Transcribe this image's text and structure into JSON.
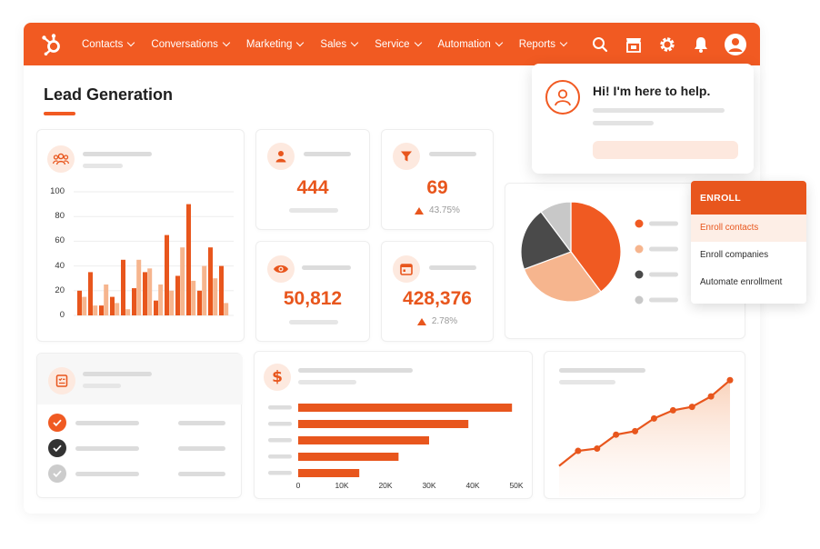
{
  "nav": {
    "items": [
      {
        "label": "Contacts"
      },
      {
        "label": "Conversations"
      },
      {
        "label": "Marketing"
      },
      {
        "label": "Sales"
      },
      {
        "label": "Service"
      },
      {
        "label": "Automation"
      },
      {
        "label": "Reports"
      }
    ],
    "icons": [
      "search-icon",
      "marketplace-icon",
      "gear-icon",
      "bell-icon",
      "avatar-icon"
    ],
    "color": "#f15a22"
  },
  "page": {
    "title": "Lead Generation"
  },
  "stats": [
    {
      "icon": "person-icon",
      "value": "444"
    },
    {
      "icon": "funnel-icon",
      "value": "69",
      "delta": "43.75%"
    },
    {
      "icon": "eye-icon",
      "value": "50,812"
    },
    {
      "icon": "calendar-icon",
      "value": "428,376",
      "delta": "2.78%"
    }
  ],
  "chat": {
    "message": "Hi! I'm here to help."
  },
  "enroll": {
    "title": "ENROLL",
    "items": [
      {
        "label": "Enroll contacts",
        "active": true
      },
      {
        "label": "Enroll companies",
        "active": false
      },
      {
        "label": "Automate enrollment",
        "active": false
      }
    ]
  },
  "chart_data": [
    {
      "type": "bar",
      "yticks": [
        "100",
        "80",
        "60",
        "40",
        "20",
        "0"
      ],
      "ylim": [
        0,
        100
      ],
      "series": [
        {
          "values": [
            20,
            35,
            8,
            15,
            45,
            22,
            35,
            12,
            65,
            32,
            90,
            20,
            55,
            40
          ]
        },
        {
          "values": [
            15,
            8,
            25,
            10,
            5,
            45,
            38,
            25,
            20,
            55,
            28,
            40,
            30,
            10
          ]
        }
      ]
    },
    {
      "type": "pie",
      "values": [
        35,
        26,
        18,
        9
      ],
      "colors": [
        "#f05a22",
        "#f6b58e",
        "#4a4a4a",
        "#c8c8c8"
      ]
    },
    {
      "type": "bar",
      "orientation": "horizontal",
      "values": [
        49000,
        39000,
        30000,
        23000,
        14000
      ],
      "xticks": [
        "0",
        "10K",
        "20K",
        "30K",
        "40K",
        "50K"
      ],
      "xlim": [
        0,
        50000
      ]
    },
    {
      "type": "area",
      "values": [
        5,
        18,
        20,
        32,
        35,
        46,
        53,
        56,
        65,
        79
      ]
    }
  ],
  "tasks": [
    {
      "status": "done",
      "color": "#f05a22"
    },
    {
      "status": "done",
      "color": "#333333"
    },
    {
      "status": "done",
      "color": "#cccccc"
    }
  ]
}
